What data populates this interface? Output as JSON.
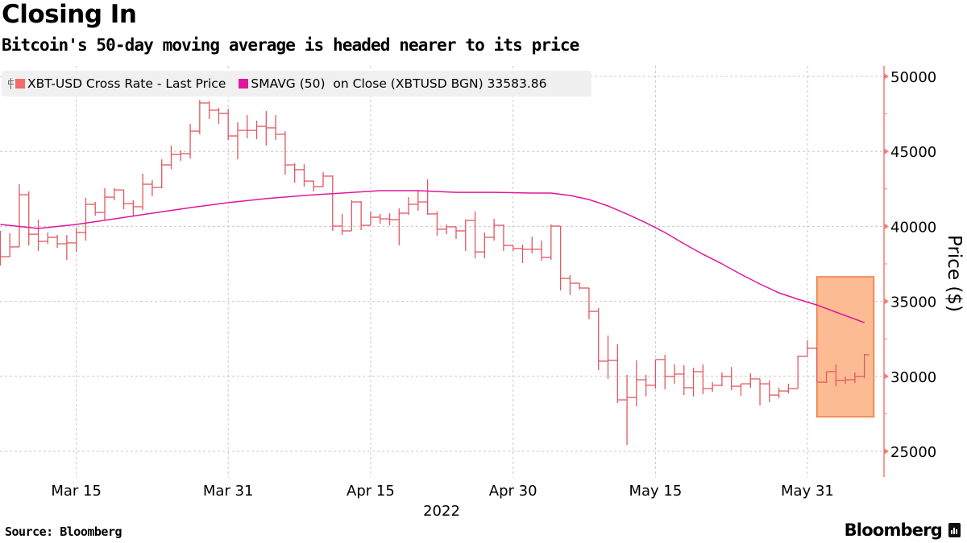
{
  "title": "Closing In",
  "subtitle": "Bitcoin's 50-day moving average is headed nearer to its price",
  "source": "Source: Bloomberg",
  "logo_text": "Bloomberg",
  "colors": {
    "price": "#e0585f",
    "price_swatch": "#f36b6b",
    "sma": "#e0179b",
    "highlight_fill": "#fdbb94",
    "highlight_border": "#f07a40",
    "axis": "#f57a7a"
  },
  "chart_data": {
    "type": "ohlc-bar",
    "title": "Closing In",
    "xlabel": "2022",
    "ylabel": "Price ($)",
    "ylim": [
      25000,
      50000
    ],
    "yticks": [
      "50000",
      "45000",
      "40000",
      "35000",
      "30000",
      "25000"
    ],
    "xticks": [
      {
        "date": "2022-03-15",
        "label": "Mar 15"
      },
      {
        "date": "2022-03-31",
        "label": "Mar 31"
      },
      {
        "date": "2022-04-15",
        "label": "Apr 15"
      },
      {
        "date": "2022-04-30",
        "label": "Apr 30"
      },
      {
        "date": "2022-05-15",
        "label": "May 15"
      },
      {
        "date": "2022-05-31",
        "label": "May 31"
      }
    ],
    "grid": true,
    "legend_position": "top-left",
    "legend": [
      {
        "name": "XBT-USD Cross Rate - Last Price"
      },
      {
        "name": "SMAVG (50)  on Close (XBTUSD BGN) 33583.86"
      }
    ],
    "price_series_columns": [
      "date",
      "high",
      "low",
      "close"
    ],
    "price_series": [
      [
        "2022-03-07",
        39700,
        37390,
        37980
      ],
      [
        "2022-03-08",
        39540,
        37980,
        38630
      ],
      [
        "2022-03-09",
        42810,
        38630,
        42110
      ],
      [
        "2022-03-10",
        42330,
        38730,
        39480
      ],
      [
        "2022-03-11",
        40450,
        38360,
        39000
      ],
      [
        "2022-03-12",
        39590,
        38840,
        39270
      ],
      [
        "2022-03-13",
        39430,
        38570,
        38840
      ],
      [
        "2022-03-14",
        39430,
        37770,
        38900
      ],
      [
        "2022-03-15",
        39910,
        38300,
        39590
      ],
      [
        "2022-03-16",
        41900,
        39050,
        41470
      ],
      [
        "2022-03-17",
        41630,
        40720,
        40930
      ],
      [
        "2022-03-18",
        42540,
        40400,
        41950
      ],
      [
        "2022-03-19",
        42540,
        41740,
        42430
      ],
      [
        "2022-03-20",
        42430,
        41150,
        41520
      ],
      [
        "2022-03-21",
        41740,
        40660,
        41310
      ],
      [
        "2022-03-22",
        43510,
        41090,
        42810
      ],
      [
        "2022-03-23",
        43080,
        42010,
        42600
      ],
      [
        "2022-03-24",
        44470,
        42540,
        44100
      ],
      [
        "2022-03-25",
        45390,
        43830,
        44800
      ],
      [
        "2022-03-26",
        45060,
        44370,
        44850
      ],
      [
        "2022-03-27",
        46830,
        44530,
        46350
      ],
      [
        "2022-03-28",
        48440,
        46140,
        48230
      ],
      [
        "2022-03-29",
        48340,
        47160,
        47750
      ],
      [
        "2022-03-30",
        47910,
        46830,
        47530
      ],
      [
        "2022-03-31",
        47850,
        45760,
        46030
      ],
      [
        "2022-04-01",
        46940,
        44470,
        46400
      ],
      [
        "2022-04-02",
        47420,
        45870,
        46400
      ],
      [
        "2022-04-03",
        47050,
        45820,
        46670
      ],
      [
        "2022-04-04",
        47690,
        45390,
        46570
      ],
      [
        "2022-04-05",
        47420,
        45760,
        46140
      ],
      [
        "2022-04-06",
        46350,
        43450,
        44100
      ],
      [
        "2022-04-07",
        44210,
        42920,
        43780
      ],
      [
        "2022-04-08",
        44150,
        42650,
        43020
      ],
      [
        "2022-04-09",
        43030,
        42330,
        42650
      ],
      [
        "2022-04-10",
        43620,
        42650,
        43350
      ],
      [
        "2022-04-11",
        43400,
        39700,
        40020
      ],
      [
        "2022-04-12",
        40830,
        39430,
        39700
      ],
      [
        "2022-04-13",
        41740,
        39700,
        41630
      ],
      [
        "2022-04-14",
        41680,
        39750,
        40070
      ],
      [
        "2022-04-15",
        40990,
        40070,
        40610
      ],
      [
        "2022-04-16",
        40830,
        40180,
        40500
      ],
      [
        "2022-04-17",
        40880,
        40070,
        40450
      ],
      [
        "2022-04-18",
        41200,
        38730,
        40880
      ],
      [
        "2022-04-19",
        41950,
        40770,
        41470
      ],
      [
        "2022-04-20",
        42380,
        41040,
        41630
      ],
      [
        "2022-04-21",
        43130,
        40770,
        40830
      ],
      [
        "2022-04-22",
        40990,
        39380,
        39810
      ],
      [
        "2022-04-23",
        40130,
        39480,
        39970
      ],
      [
        "2022-04-24",
        39970,
        39160,
        39700
      ],
      [
        "2022-04-25",
        40450,
        38360,
        40400
      ],
      [
        "2022-04-26",
        41000,
        37870,
        38300
      ],
      [
        "2022-04-27",
        39590,
        37870,
        39270
      ],
      [
        "2022-04-28",
        40500,
        39050,
        40070
      ],
      [
        "2022-04-29",
        40130,
        38360,
        38730
      ],
      [
        "2022-04-30",
        38730,
        38360,
        38520
      ],
      [
        "2022-05-01",
        38790,
        37550,
        38470
      ],
      [
        "2022-05-02",
        39320,
        38200,
        38470
      ],
      [
        "2022-05-03",
        39050,
        37710,
        37930
      ],
      [
        "2022-05-04",
        40130,
        37770,
        40020
      ],
      [
        "2022-05-05",
        40020,
        35730,
        36530
      ],
      [
        "2022-05-06",
        36750,
        35410,
        36210
      ],
      [
        "2022-05-07",
        36210,
        35780,
        35890
      ],
      [
        "2022-05-08",
        35890,
        33800,
        34330
      ],
      [
        "2022-05-09",
        34550,
        30420,
        31010
      ],
      [
        "2022-05-10",
        32720,
        29830,
        31060
      ],
      [
        "2022-05-11",
        32130,
        28220,
        28430
      ],
      [
        "2022-05-12",
        30100,
        25430,
        28590
      ],
      [
        "2022-05-13",
        31060,
        28000,
        29770
      ],
      [
        "2022-05-14",
        30100,
        28650,
        29400
      ],
      [
        "2022-05-15",
        31120,
        29180,
        31120
      ],
      [
        "2022-05-16",
        31440,
        29130,
        29990
      ],
      [
        "2022-05-17",
        30790,
        29510,
        30150
      ],
      [
        "2022-05-18",
        30740,
        28750,
        29240
      ],
      [
        "2022-05-19",
        30580,
        28650,
        30310
      ],
      [
        "2022-05-20",
        30790,
        28810,
        29180
      ],
      [
        "2022-05-21",
        29610,
        28970,
        29400
      ],
      [
        "2022-05-22",
        30260,
        29340,
        29990
      ],
      [
        "2022-05-23",
        30630,
        29080,
        29340
      ],
      [
        "2022-05-24",
        29510,
        28700,
        29500
      ],
      [
        "2022-05-25",
        30200,
        29240,
        29830
      ],
      [
        "2022-05-26",
        29830,
        28060,
        29500
      ],
      [
        "2022-05-27",
        29720,
        28270,
        28750
      ],
      [
        "2022-05-28",
        29240,
        28540,
        29020
      ],
      [
        "2022-05-29",
        29510,
        28860,
        29180
      ],
      [
        "2022-05-30",
        31380,
        29180,
        31330
      ],
      [
        "2022-05-31",
        32400,
        31330,
        31870
      ],
      [
        "2022-06-01",
        31870,
        29610,
        29610
      ],
      [
        "2022-06-02",
        30310,
        29560,
        30310
      ],
      [
        "2022-06-03",
        30790,
        29340,
        29720
      ],
      [
        "2022-06-04",
        29990,
        29500,
        29770
      ],
      [
        "2022-06-05",
        30260,
        29560,
        29990
      ],
      [
        "2022-06-06",
        31490,
        29880,
        31440
      ]
    ],
    "sma_series": [
      [
        "2022-03-07",
        40130
      ],
      [
        "2022-03-11",
        39860
      ],
      [
        "2022-03-15",
        40130
      ],
      [
        "2022-03-19",
        40500
      ],
      [
        "2022-03-23",
        40880
      ],
      [
        "2022-03-27",
        41250
      ],
      [
        "2022-03-31",
        41580
      ],
      [
        "2022-04-04",
        41850
      ],
      [
        "2022-04-08",
        42060
      ],
      [
        "2022-04-12",
        42220
      ],
      [
        "2022-04-16",
        42380
      ],
      [
        "2022-04-20",
        42380
      ],
      [
        "2022-04-24",
        42270
      ],
      [
        "2022-04-28",
        42270
      ],
      [
        "2022-05-02",
        42220
      ],
      [
        "2022-05-04",
        42220
      ],
      [
        "2022-05-06",
        42060
      ],
      [
        "2022-05-08",
        41790
      ],
      [
        "2022-05-10",
        41360
      ],
      [
        "2022-05-12",
        40820
      ],
      [
        "2022-05-14",
        40240
      ],
      [
        "2022-05-16",
        39590
      ],
      [
        "2022-05-18",
        38840
      ],
      [
        "2022-05-20",
        38140
      ],
      [
        "2022-05-22",
        37500
      ],
      [
        "2022-05-24",
        36800
      ],
      [
        "2022-05-26",
        36160
      ],
      [
        "2022-05-28",
        35570
      ],
      [
        "2022-05-30",
        35140
      ],
      [
        "2022-06-01",
        34760
      ],
      [
        "2022-06-03",
        34280
      ],
      [
        "2022-06-06",
        33583.86
      ]
    ],
    "highlight": {
      "from": "2022-06-01",
      "to": "2022-06-07",
      "low": 27300,
      "high": 36640
    }
  }
}
